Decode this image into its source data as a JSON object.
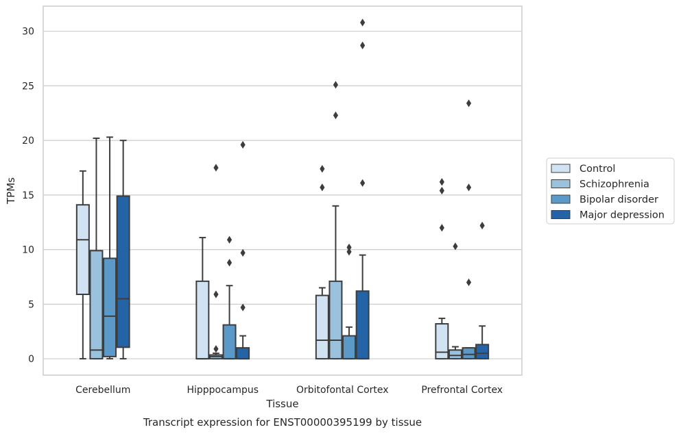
{
  "chart_data": {
    "type": "box",
    "title": "Transcript expression for ENST00000395199 by tissue",
    "xlabel": "Tissue",
    "ylabel": "TPMs",
    "ylim": [
      -1.5,
      32.3
    ],
    "yticks": [
      0,
      5,
      10,
      15,
      20,
      25,
      30
    ],
    "grid": "horizontal",
    "legend_position": "right",
    "categories": [
      "Cerebellum",
      "Hipppocampus",
      "Orbitofontal Cortex",
      "Prefrontal Cortex"
    ],
    "series": [
      {
        "name": "Control",
        "color": "#d1e2f2",
        "boxes": [
          {
            "whisker_low": 0,
            "q1": 5.9,
            "median": 10.9,
            "q3": 14.1,
            "whisker_high": 17.2,
            "outliers": []
          },
          {
            "whisker_low": 0,
            "q1": 0,
            "median": 0,
            "q3": 7.1,
            "whisker_high": 11.1,
            "outliers": []
          },
          {
            "whisker_low": 0,
            "q1": 0,
            "median": 1.7,
            "q3": 5.8,
            "whisker_high": 6.5,
            "outliers": [
              15.7,
              17.4
            ]
          },
          {
            "whisker_low": 0,
            "q1": 0,
            "median": 0.6,
            "q3": 3.2,
            "whisker_high": 3.7,
            "outliers": [
              12.0,
              15.4,
              16.2
            ]
          }
        ]
      },
      {
        "name": "Schizophrenia",
        "color": "#9ac2dc",
        "boxes": [
          {
            "whisker_low": 0,
            "q1": 0,
            "median": 0.8,
            "q3": 9.9,
            "whisker_high": 20.2,
            "outliers": []
          },
          {
            "whisker_low": 0,
            "q1": 0,
            "median": 0.2,
            "q3": 0.35,
            "whisker_high": 0.5,
            "outliers": [
              0.9,
              5.9,
              17.5
            ]
          },
          {
            "whisker_low": 0,
            "q1": 0,
            "median": 1.7,
            "q3": 7.1,
            "whisker_high": 14.0,
            "outliers": [
              22.3,
              25.1
            ]
          },
          {
            "whisker_low": 0,
            "q1": 0,
            "median": 0.3,
            "q3": 0.8,
            "whisker_high": 1.1,
            "outliers": [
              10.3
            ]
          }
        ]
      },
      {
        "name": "Bipolar disorder",
        "color": "#5b9ac8",
        "boxes": [
          {
            "whisker_low": 0,
            "q1": 0.2,
            "median": 3.9,
            "q3": 9.2,
            "whisker_high": 20.3,
            "outliers": []
          },
          {
            "whisker_low": 0,
            "q1": 0,
            "median": 0,
            "q3": 3.1,
            "whisker_high": 6.7,
            "outliers": [
              8.8,
              10.9
            ]
          },
          {
            "whisker_low": 0,
            "q1": 0,
            "median": 0,
            "q3": 2.1,
            "whisker_high": 2.9,
            "outliers": [
              9.8,
              10.2
            ]
          },
          {
            "whisker_low": 0,
            "q1": 0,
            "median": 0.4,
            "q3": 1.0,
            "whisker_high": 1.0,
            "outliers": [
              7.0,
              15.7,
              23.4
            ]
          }
        ]
      },
      {
        "name": "Major depression",
        "color": "#2464a6",
        "boxes": [
          {
            "whisker_low": 0,
            "q1": 1.05,
            "median": 5.5,
            "q3": 14.9,
            "whisker_high": 20.0,
            "outliers": []
          },
          {
            "whisker_low": 0,
            "q1": 0,
            "median": 0,
            "q3": 1.0,
            "whisker_high": 2.1,
            "outliers": [
              4.7,
              9.7,
              19.6
            ]
          },
          {
            "whisker_low": 0,
            "q1": 0,
            "median": 0,
            "q3": 6.2,
            "whisker_high": 9.5,
            "outliers": [
              16.1,
              28.7,
              30.8
            ]
          },
          {
            "whisker_low": 0,
            "q1": 0,
            "median": 0.5,
            "q3": 1.3,
            "whisker_high": 3.0,
            "outliers": [
              12.2
            ]
          }
        ]
      }
    ]
  }
}
